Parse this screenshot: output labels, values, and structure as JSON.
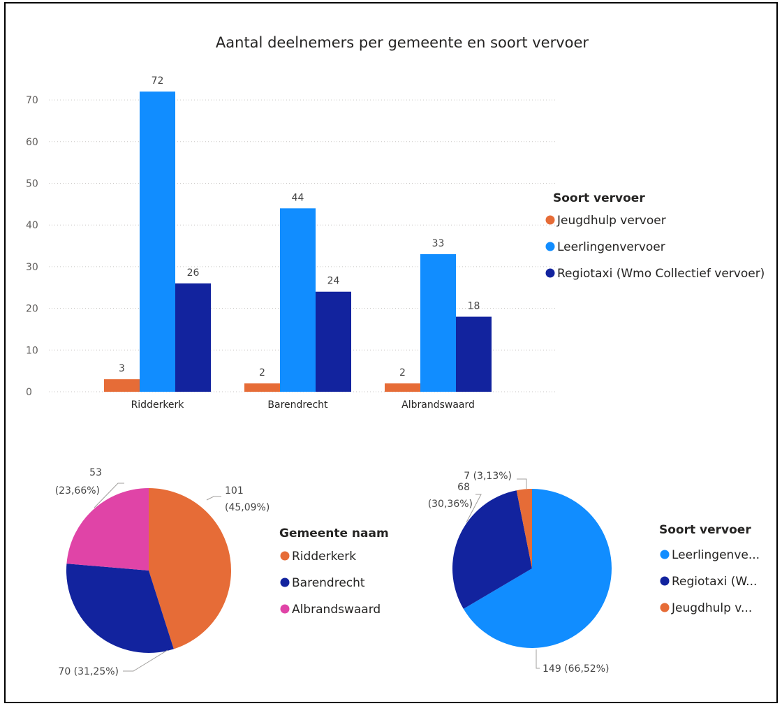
{
  "colors": {
    "orange": "#E66C37",
    "lightblue": "#118DFF",
    "darkblue": "#12239E",
    "pink": "#E044A7"
  },
  "chart_data": [
    {
      "type": "bar",
      "title": "Aantal deelnemers per gemeente en soort vervoer",
      "categories": [
        "Ridderkerk",
        "Barendrecht",
        "Albrandswaard"
      ],
      "series": [
        {
          "name": "Jeugdhulp vervoer",
          "color": "#E66C37",
          "values": [
            3,
            2,
            2
          ]
        },
        {
          "name": "Leerlingenvervoer",
          "color": "#118DFF",
          "values": [
            72,
            44,
            33
          ]
        },
        {
          "name": "Regiotaxi (Wmo Collectief vervoer)",
          "color": "#12239E",
          "values": [
            26,
            24,
            18
          ]
        }
      ],
      "yticks": [
        0,
        10,
        20,
        30,
        40,
        50,
        60,
        70
      ],
      "ylim": [
        0,
        75
      ],
      "grid": true,
      "legend": {
        "title": "Soort vervoer",
        "position": "right"
      }
    },
    {
      "type": "pie",
      "slices": [
        {
          "name": "Ridderkerk",
          "value": 101,
          "label_line1": "101",
          "label_line2": "(45,09%)",
          "color": "#E66C37"
        },
        {
          "name": "Barendrecht",
          "value": 70,
          "label_line1": "70 (31,25%)",
          "label_line2": "",
          "color": "#12239E"
        },
        {
          "name": "Albrandswaard",
          "value": 53,
          "label_line1": "53",
          "label_line2": "(23,66%)",
          "color": "#E044A7"
        }
      ],
      "legend": {
        "title": "Gemeente naam",
        "position": "right",
        "items": [
          "Ridderkerk",
          "Barendrecht",
          "Albrandswaard"
        ]
      }
    },
    {
      "type": "pie",
      "slices": [
        {
          "name": "Leerlingenvervoer",
          "value": 149,
          "label_line1": "149 (66,52%)",
          "label_line2": "",
          "color": "#118DFF"
        },
        {
          "name": "Regiotaxi (Wmo Collectief vervoer)",
          "value": 68,
          "label_line1": "68",
          "label_line2": "(30,36%)",
          "color": "#12239E"
        },
        {
          "name": "Jeugdhulp vervoer",
          "value": 7,
          "label_line1": "7 (3,13%)",
          "label_line2": "",
          "color": "#E66C37"
        }
      ],
      "legend": {
        "title": "Soort vervoer",
        "position": "right",
        "items": [
          "Leerlingenve...",
          "Regiotaxi (W...",
          "Jeugdhulp v..."
        ]
      }
    }
  ]
}
